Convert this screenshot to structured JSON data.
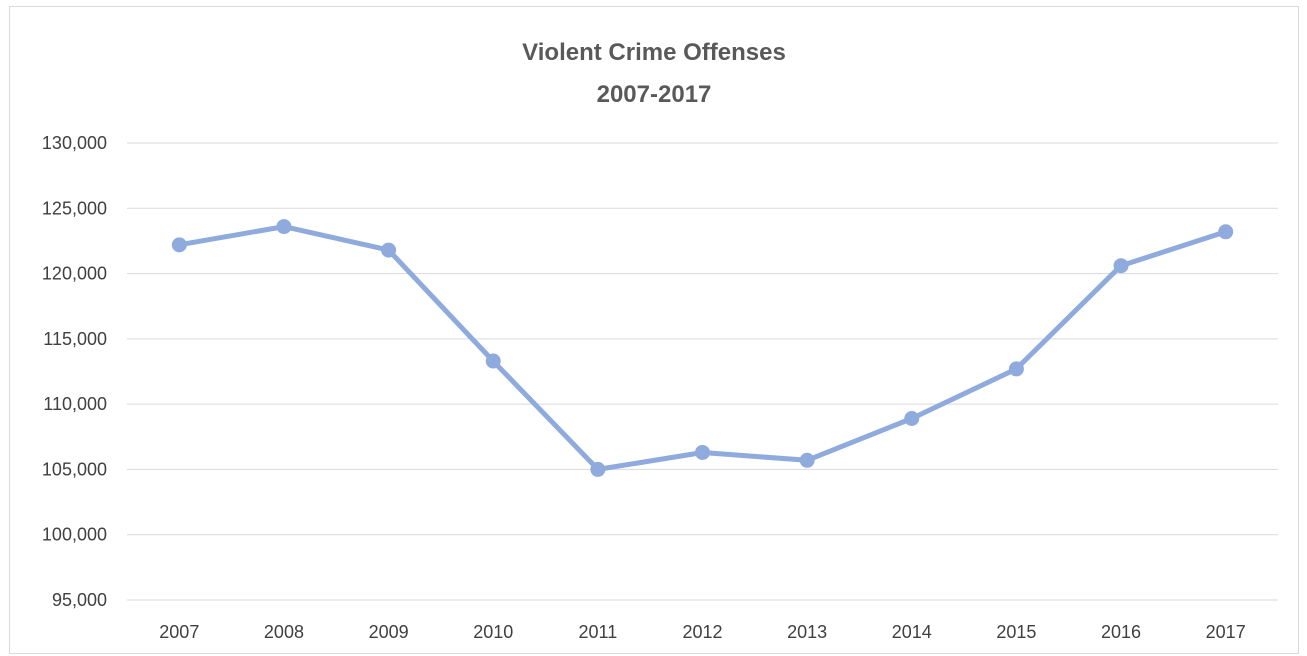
{
  "chart_data": {
    "type": "line",
    "title": "Violent Crime Offenses",
    "subtitle": "2007-2017",
    "xlabel": "",
    "ylabel": "",
    "categories": [
      "2007",
      "2008",
      "2009",
      "2010",
      "2011",
      "2012",
      "2013",
      "2014",
      "2015",
      "2016",
      "2017"
    ],
    "series": [
      {
        "values": [
          122200,
          123600,
          121800,
          113300,
          105000,
          106300,
          105700,
          108900,
          112700,
          120600,
          123200
        ],
        "color": "#8faadc"
      }
    ],
    "ylim": [
      95000,
      130000
    ],
    "yticks": [
      95000,
      100000,
      105000,
      110000,
      115000,
      120000,
      125000,
      130000
    ],
    "ytick_labels": [
      "95,000",
      "100,000",
      "105,000",
      "110,000",
      "115,000",
      "120,000",
      "125,000",
      "130,000"
    ],
    "grid": true,
    "legend": "none",
    "colors": {
      "gridline": "#d9d9d9",
      "series": "#8faadc",
      "title": "#595959",
      "tick": "#404040"
    }
  }
}
